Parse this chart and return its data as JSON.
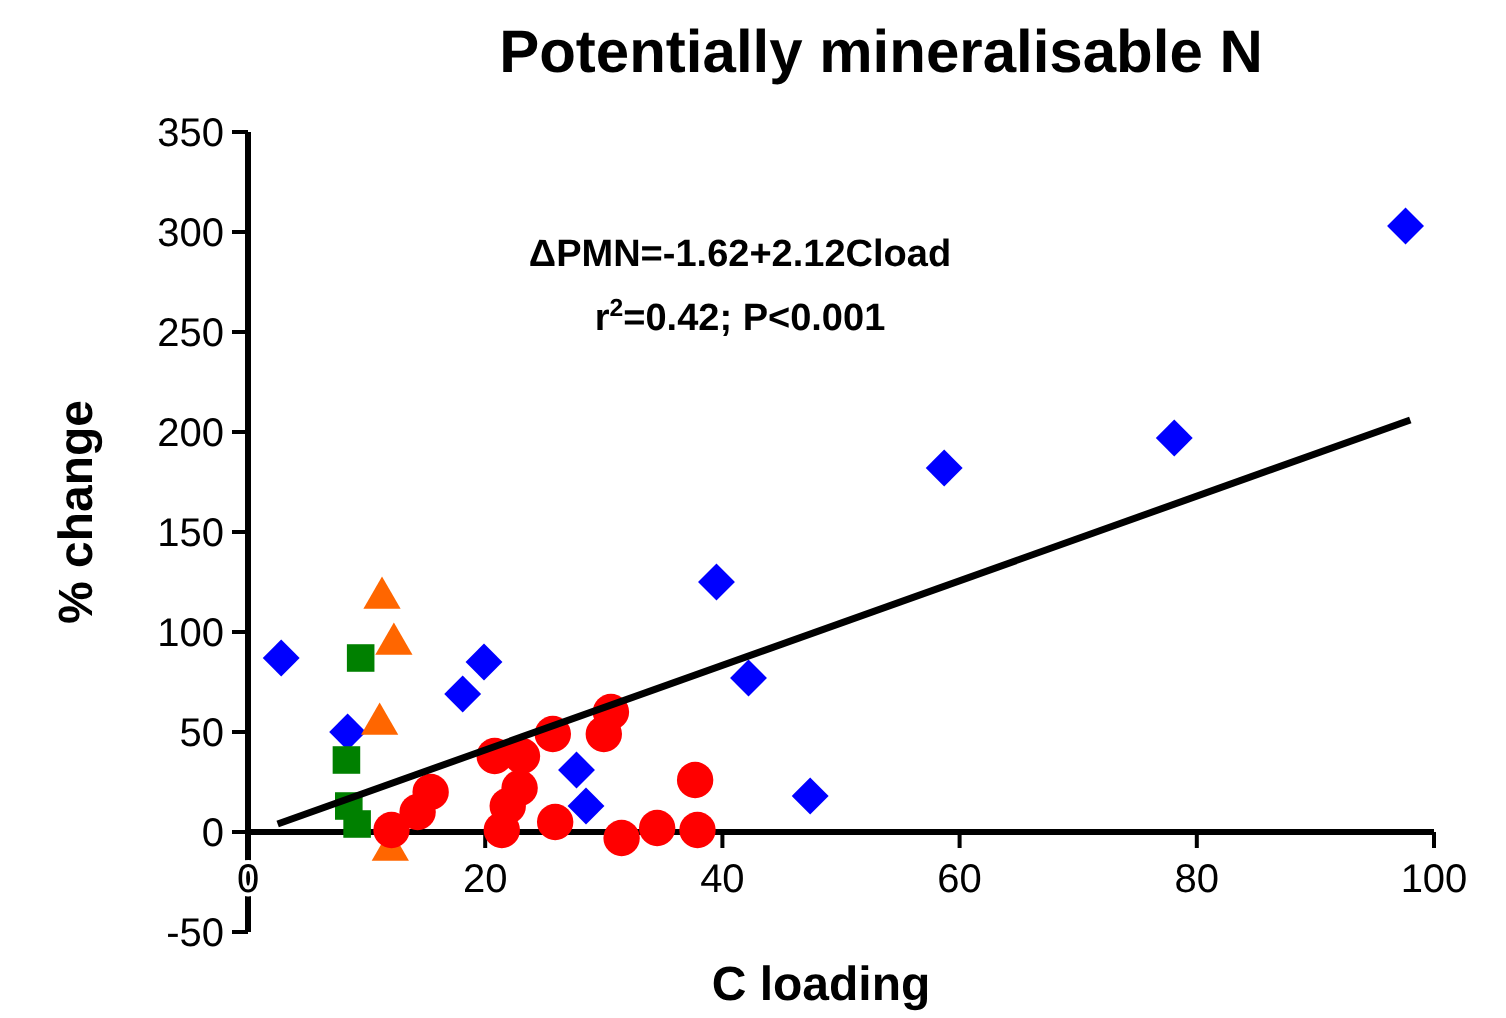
{
  "chart_data": {
    "type": "scatter",
    "title": "Potentially mineralisable N",
    "xlabel": "C loading",
    "ylabel": "% change",
    "xlim": [
      0,
      100
    ],
    "xticks": [
      0,
      20,
      40,
      60,
      80,
      100
    ],
    "ylim": [
      -50,
      350
    ],
    "yticks": [
      -50,
      0,
      50,
      100,
      150,
      200,
      250,
      300,
      350
    ],
    "grid": false,
    "annotations": [
      "ΔPMN=-1.62+2.12Cload",
      "r$^{2}$=0.42; P<0.001"
    ],
    "series": [
      {
        "marker": "diamond",
        "color": "#0000ff",
        "x": [
          2.8,
          8.4,
          18.1,
          19.9,
          27.7,
          28.5,
          39.5,
          42.2,
          47.4,
          58.7,
          78.1,
          97.6
        ],
        "values": [
          87,
          50,
          69,
          85,
          31,
          13,
          125,
          77,
          18,
          182,
          197,
          303
        ]
      },
      {
        "marker": "square",
        "color": "#008000",
        "x": [
          9.5,
          8.3,
          8.5,
          9.2
        ],
        "values": [
          87,
          36,
          13,
          4
        ]
      },
      {
        "marker": "triangle",
        "color": "#ff6600",
        "x": [
          11.3,
          12.3,
          11.1,
          12
        ],
        "values": [
          117,
          94,
          54,
          -9
        ]
      },
      {
        "marker": "circle",
        "color": "#ff0000",
        "x": [
          12.1,
          14.3,
          15.4,
          20.8,
          23.1,
          22.9,
          21.9,
          21.4,
          25.7,
          25.9,
          30,
          30.6,
          31.5,
          34.5,
          37.7,
          37.9
        ],
        "values": [
          1,
          10,
          20,
          38,
          38,
          22,
          13,
          1,
          49,
          5,
          49,
          60,
          -3,
          2,
          26,
          1
        ]
      },
      {
        "type": "line",
        "color": "#000000",
        "marker": "none",
        "x": [
          2.5,
          98
        ],
        "values": [
          4,
          206
        ]
      }
    ]
  }
}
